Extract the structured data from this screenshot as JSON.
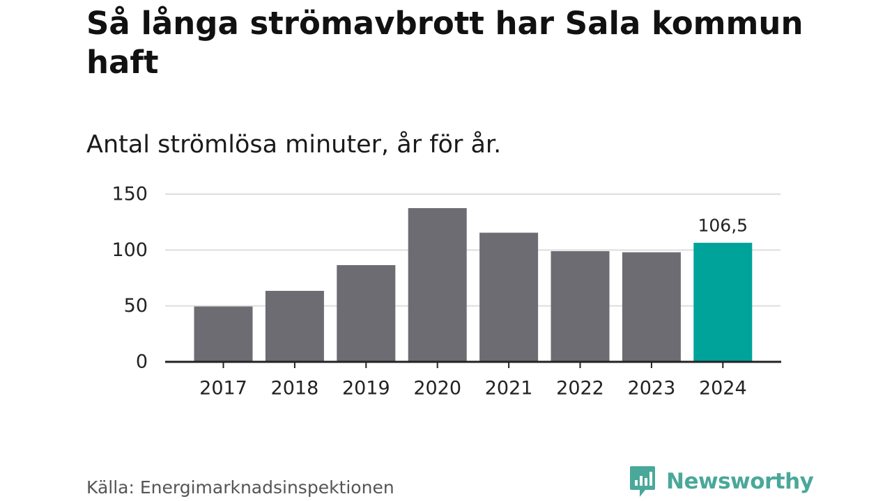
{
  "title": "Så långa strömavbrott har Sala kommun haft",
  "subtitle": "Antal strömlösa minuter, år för år.",
  "source": "Källa: Energimarknadsinspektionen",
  "brand": "Newsworthy",
  "colors": {
    "bar": "#6d6c73",
    "highlight": "#00a39a",
    "grid": "#dddddd",
    "axis": "#222222",
    "brand": "#4aa89a"
  },
  "chart_data": {
    "type": "bar",
    "categories": [
      "2017",
      "2018",
      "2019",
      "2020",
      "2021",
      "2022",
      "2023",
      "2024"
    ],
    "values": [
      49.5,
      63.5,
      86.5,
      137.5,
      115.5,
      99,
      98,
      106.5
    ],
    "highlight_index": 7,
    "data_labels": {
      "7": "106,5"
    },
    "ylim": [
      0,
      150
    ],
    "yticks": [
      0,
      50,
      100,
      150
    ],
    "xlabel": "",
    "ylabel": "",
    "grid": true
  }
}
